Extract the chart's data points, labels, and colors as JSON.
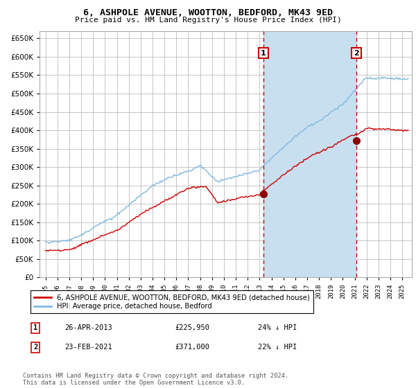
{
  "title": "6, ASHPOLE AVENUE, WOOTTON, BEDFORD, MK43 9ED",
  "subtitle": "Price paid vs. HM Land Registry's House Price Index (HPI)",
  "ylim": [
    0,
    670000
  ],
  "yticks": [
    0,
    50000,
    100000,
    150000,
    200000,
    250000,
    300000,
    350000,
    400000,
    450000,
    500000,
    550000,
    600000,
    650000
  ],
  "xlim_start": 1994.5,
  "xlim_end": 2025.8,
  "hpi_color": "#7fb9e0",
  "price_color": "#cc0000",
  "marker_color": "#8b0000",
  "vline_color": "#cc0000",
  "shade_color": "#c8dff0",
  "grid_color": "#bbbbbb",
  "sale1_date": 2013.32,
  "sale1_price": 225950,
  "sale2_date": 2021.13,
  "sale2_price": 371000,
  "legend_label_price": "6, ASHPOLE AVENUE, WOOTTON, BEDFORD, MK43 9ED (detached house)",
  "legend_label_hpi": "HPI: Average price, detached house, Bedford",
  "annotation1_label": "1",
  "annotation1_date": "26-APR-2013",
  "annotation1_price": "£225,950",
  "annotation1_hpi": "24% ↓ HPI",
  "annotation2_label": "2",
  "annotation2_date": "23-FEB-2021",
  "annotation2_price": "£371,000",
  "annotation2_hpi": "22% ↓ HPI",
  "footer": "Contains HM Land Registry data © Crown copyright and database right 2024.\nThis data is licensed under the Open Government Licence v3.0."
}
